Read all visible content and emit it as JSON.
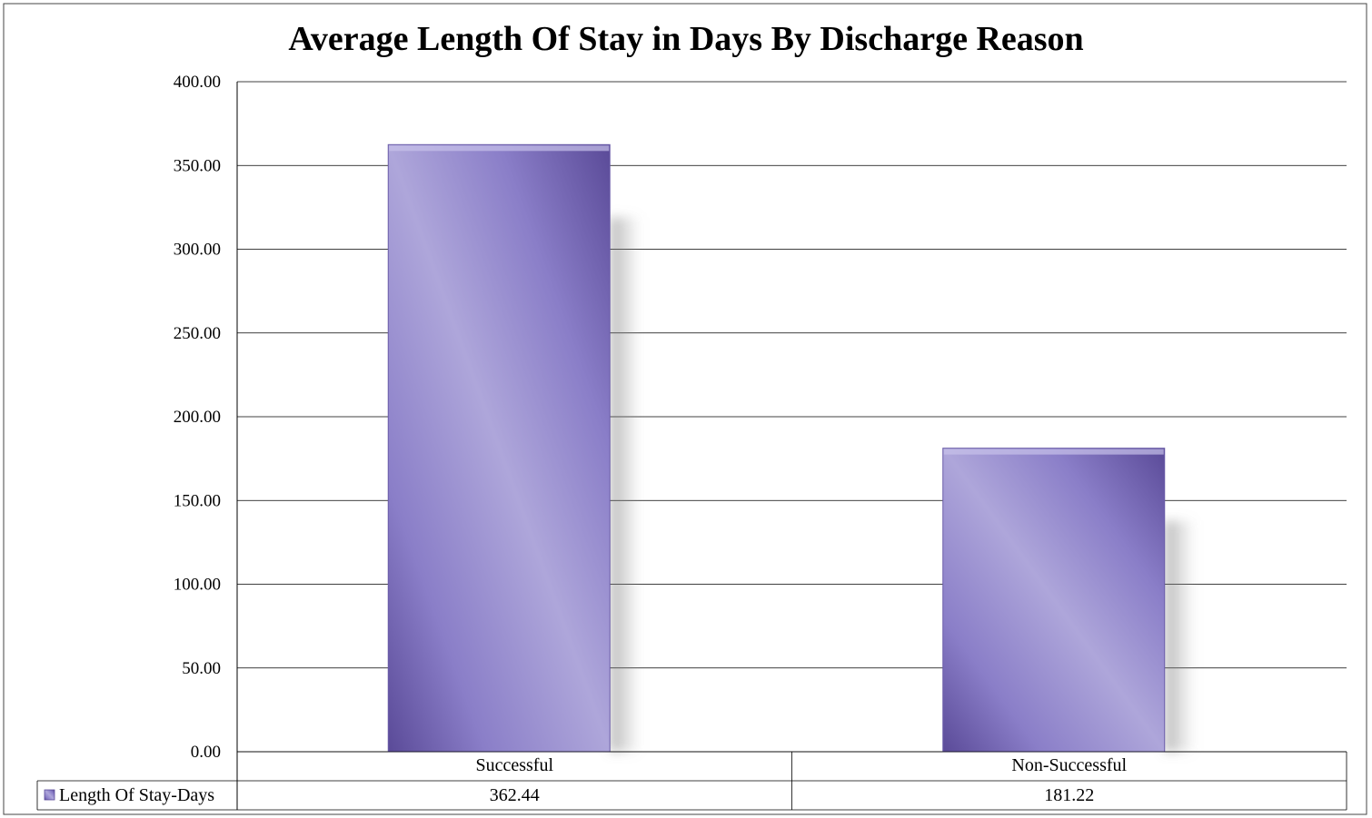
{
  "chart_data": {
    "type": "bar",
    "title": "Average Length Of Stay in Days By Discharge Reason",
    "categories": [
      "Successful",
      "Non-Successful"
    ],
    "series": [
      {
        "name": "Length Of Stay-Days",
        "values": [
          362.44,
          181.22
        ],
        "value_labels": [
          "362.44",
          "181.22"
        ],
        "color": "#8878c8"
      }
    ],
    "ylim": [
      0,
      400
    ],
    "yticks": [
      0,
      50,
      100,
      150,
      200,
      250,
      300,
      350,
      400
    ],
    "ytick_labels": [
      "0.00",
      "50.00",
      "100.00",
      "150.00",
      "200.00",
      "250.00",
      "300.00",
      "350.00",
      "400.00"
    ],
    "grid": true,
    "legend": "data-table-bottom",
    "colors": {
      "bar_light": "#aea6da",
      "bar_mid": "#8a7ec8",
      "bar_dark": "#5a4a98",
      "grid": "#000000"
    }
  }
}
